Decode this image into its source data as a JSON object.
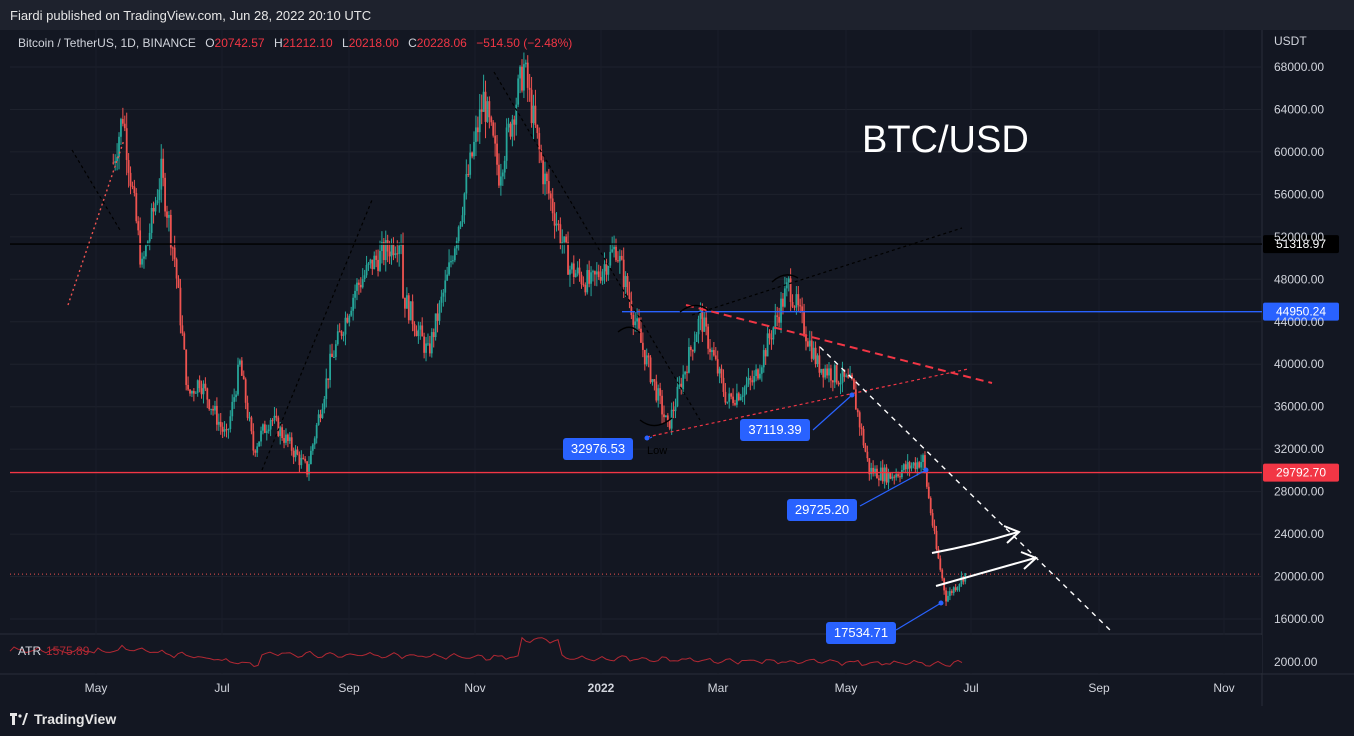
{
  "header": {
    "published": "Fiardi published on TradingView.com, Jun 28, 2022 20:10 UTC"
  },
  "legend": {
    "symbol": "Bitcoin / TetherUS, 1D, BINANCE",
    "o_label": "O",
    "o_value": "20742.57",
    "h_label": "H",
    "h_value": "21212.10",
    "l_label": "L",
    "l_value": "20218.00",
    "c_label": "C",
    "c_value": "20228.06",
    "change": "−514.50 (−2.48%)"
  },
  "annotation_title": "BTC/USD",
  "footer": {
    "brand": "TradingView"
  },
  "colors": {
    "background": "#131722",
    "up": "#26a69a",
    "down": "#ef5350",
    "blue_line": "#2962ff",
    "red_line": "#f23645",
    "label_blue": "#2962ff"
  },
  "chart_data": {
    "type": "candlestick",
    "symbol": "BTCUSDT",
    "interval": "1D",
    "y_axis_title": "USDT",
    "ylim": [
      15000,
      70000
    ],
    "y_ticks": [
      "68000.00",
      "64000.00",
      "60000.00",
      "56000.00",
      "52000.00",
      "48000.00",
      "44000.00",
      "40000.00",
      "36000.00",
      "32000.00",
      "28000.00",
      "24000.00",
      "20000.00",
      "16000.00"
    ],
    "x_ticks": [
      "May",
      "Jul",
      "Sep",
      "Nov",
      "2022",
      "Mar",
      "May",
      "Jul",
      "Sep",
      "Nov"
    ],
    "horizontal_levels": [
      {
        "value": 51318.97,
        "label": "51318.97",
        "color": "#000000"
      },
      {
        "value": 44950.24,
        "label": "44950.24",
        "color": "#2962ff"
      },
      {
        "value": 29792.7,
        "label": "29792.70",
        "color": "#f23645"
      }
    ],
    "last_price": 20228.06,
    "price_path": [
      [
        "2021-04-10",
        59000
      ],
      [
        "2021-04-15",
        63500
      ],
      [
        "2021-04-25",
        49000
      ],
      [
        "2021-05-05",
        58000
      ],
      [
        "2021-05-12",
        50000
      ],
      [
        "2021-05-19",
        37000
      ],
      [
        "2021-05-25",
        38500
      ],
      [
        "2021-06-08",
        33000
      ],
      [
        "2021-06-15",
        40000
      ],
      [
        "2021-06-22",
        32000
      ],
      [
        "2021-07-01",
        35000
      ],
      [
        "2021-07-20",
        30000
      ],
      [
        "2021-08-01",
        40000
      ],
      [
        "2021-08-14",
        47000
      ],
      [
        "2021-08-23",
        49500
      ],
      [
        "2021-09-07",
        52000
      ],
      [
        "2021-09-08",
        46500
      ],
      [
        "2021-09-21",
        41000
      ],
      [
        "2021-10-01",
        48000
      ],
      [
        "2021-10-20",
        65000
      ],
      [
        "2021-10-28",
        58000
      ],
      [
        "2021-11-10",
        68000
      ],
      [
        "2021-11-20",
        58000
      ],
      [
        "2021-12-04",
        49000
      ],
      [
        "2021-12-15",
        47500
      ],
      [
        "2021-12-28",
        51000
      ],
      [
        "2022-01-10",
        42000
      ],
      [
        "2022-01-24",
        34000
      ],
      [
        "2022-02-10",
        44500
      ],
      [
        "2022-02-24",
        36500
      ],
      [
        "2022-03-10",
        38500
      ],
      [
        "2022-03-28",
        47500
      ],
      [
        "2022-04-12",
        40000
      ],
      [
        "2022-04-30",
        38000
      ],
      [
        "2022-05-09",
        30000
      ],
      [
        "2022-05-20",
        29500
      ],
      [
        "2022-06-06",
        31000
      ],
      [
        "2022-06-13",
        22500
      ],
      [
        "2022-06-18",
        18000
      ],
      [
        "2022-06-28",
        20228
      ]
    ],
    "annotations": [
      {
        "label": "32976.53",
        "value": 32976.53
      },
      {
        "label": "37119.39",
        "value": 37119.39
      },
      {
        "label": "29725.20",
        "value": 29725.2
      },
      {
        "label": "17534.71",
        "value": 17534.71
      },
      {
        "label": "Low"
      }
    ],
    "indicator": {
      "name": "ATR",
      "value": "1575.89",
      "axis_label": "2000.00"
    }
  }
}
